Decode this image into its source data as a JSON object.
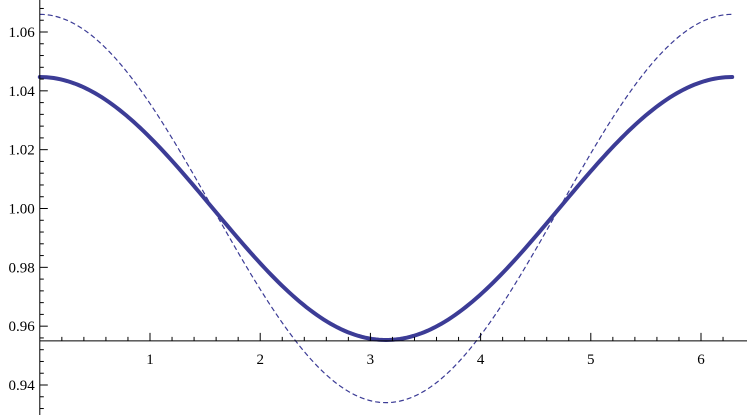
{
  "chart_data": {
    "type": "line",
    "title": "",
    "xlabel": "",
    "ylabel": "",
    "xlim": [
      0.05,
      6.35
    ],
    "ylim": [
      0.928,
      1.072
    ],
    "axis_origin": [
      0,
      0.955
    ],
    "x_ticks": [
      1,
      2,
      3,
      4,
      5,
      6
    ],
    "x_tick_labels": [
      "1",
      "2",
      "3",
      "4",
      "5",
      "6"
    ],
    "y_ticks": [
      0.94,
      0.96,
      0.98,
      1.0,
      1.02,
      1.04,
      1.06
    ],
    "y_tick_labels": [
      "0.94",
      "0.96",
      "0.98",
      "1.00",
      "1.02",
      "1.04",
      "1.06"
    ],
    "grid": false,
    "legend": "none",
    "series": [
      {
        "style": "solid-thick",
        "color": "#3c3c96",
        "x_range": [
          0,
          6.283
        ],
        "samples": 41,
        "description_formula": {
          "offset": 1.0,
          "amplitude": 0.0447,
          "fn": "cos"
        },
        "values_at": {
          "0": 1.0447,
          "1.571": 1.0,
          "3.142": 0.9553,
          "4.712": 1.0,
          "6.283": 1.0447
        }
      },
      {
        "style": "dashed-thin",
        "color": "#3c3c96",
        "x_range": [
          0,
          6.283
        ],
        "samples": 41,
        "description_formula": {
          "offset": 1.0,
          "amplitude": 0.066,
          "fn": "cos"
        },
        "values_at": {
          "0": 1.066,
          "1.571": 1.0,
          "3.142": 0.934,
          "4.712": 1.0,
          "6.283": 1.066
        }
      }
    ]
  }
}
